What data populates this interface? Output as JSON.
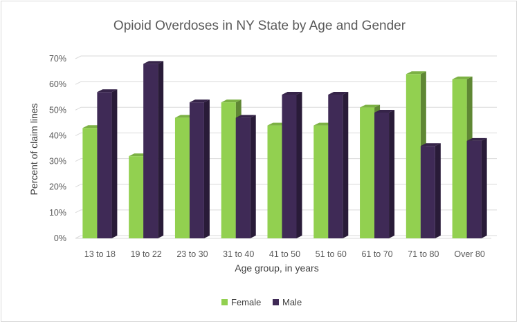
{
  "chart_data": {
    "type": "bar",
    "title": "Opioid Overdoses in NY State by Age and Gender",
    "xlabel": "Age group, in years",
    "ylabel": "Percent of claim lines",
    "categories": [
      "13 to 18",
      "19 to 22",
      "23 to 30",
      "31 to 40",
      "41 to 50",
      "51 to 60",
      "61 to 70",
      "71 to 80",
      "Over 80"
    ],
    "series": [
      {
        "name": "Female",
        "values": [
          43,
          32,
          47,
          53,
          44,
          44,
          51,
          64,
          62
        ],
        "color": "#92d050"
      },
      {
        "name": "Male",
        "values": [
          57,
          68,
          53,
          47,
          56,
          56,
          49,
          36,
          38
        ],
        "color": "#3f2a56"
      }
    ],
    "ylim": [
      0,
      70
    ],
    "yticks": [
      "0%",
      "10%",
      "20%",
      "30%",
      "40%",
      "50%",
      "60%",
      "70%"
    ],
    "grid": true,
    "bar_style": "3d-column",
    "legend_position": "bottom"
  }
}
